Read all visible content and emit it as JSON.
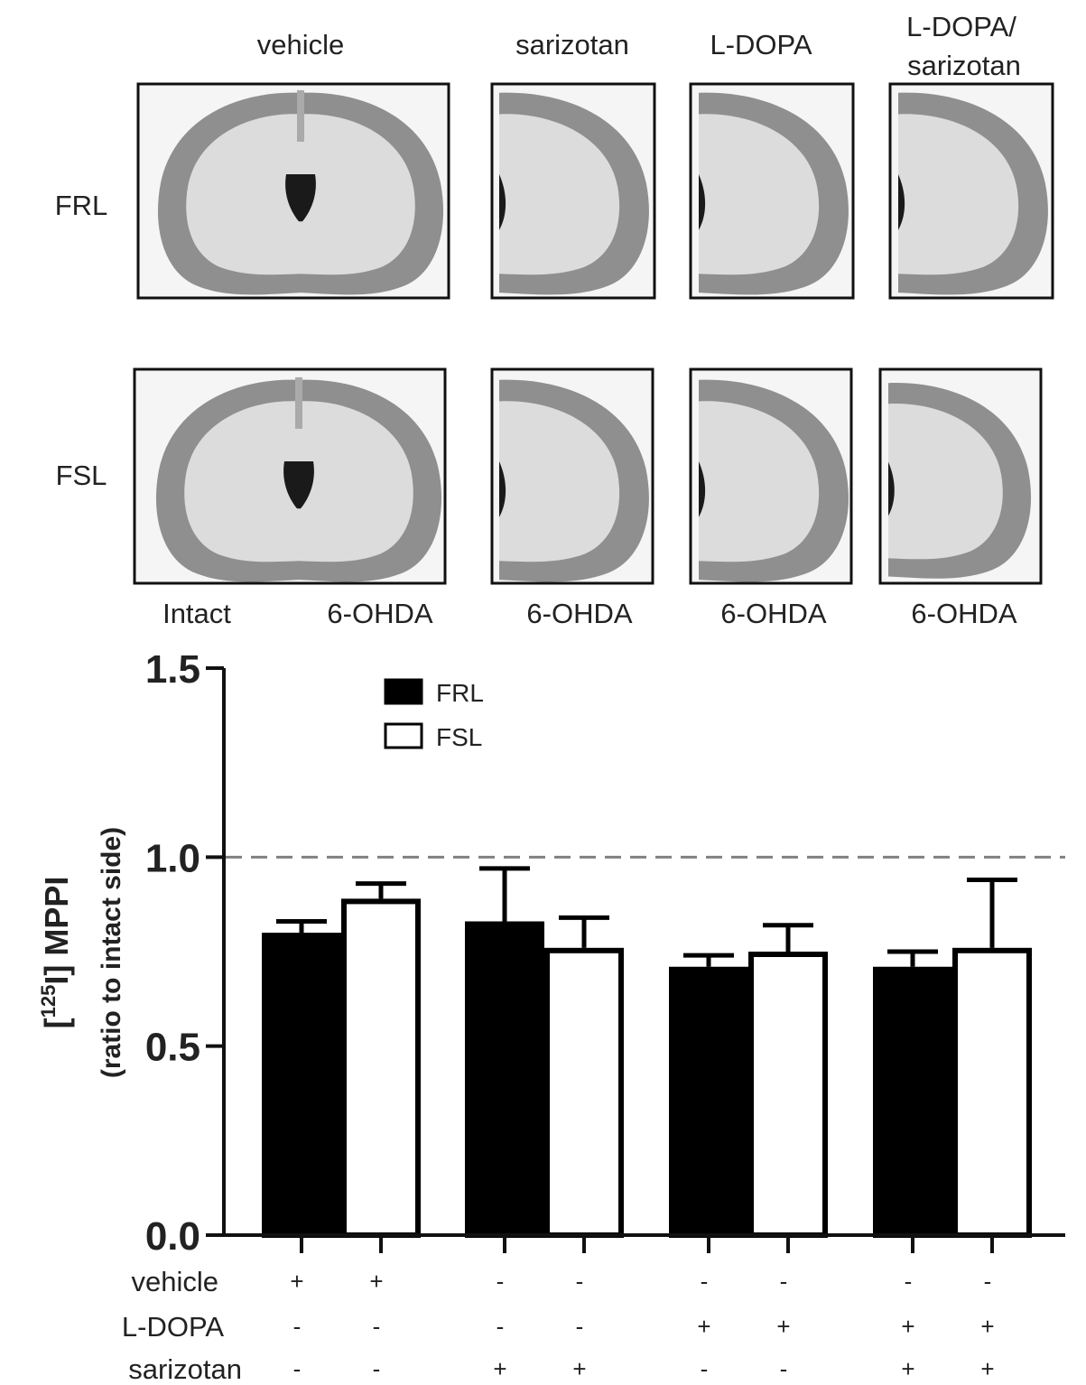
{
  "panel_images": {
    "column_labels": [
      "vehicle",
      "sarizotan",
      "L-DOPA",
      "L-DOPA/",
      "sarizotan"
    ],
    "row_labels": [
      "FRL",
      "FSL"
    ],
    "bottom_labels": [
      "Intact",
      "6-OHDA",
      "6-OHDA",
      "6-OHDA",
      "6-OHDA"
    ]
  },
  "chart_data": {
    "type": "bar",
    "ylabel_main": "[125I] MPPI",
    "ylabel_sup": "125",
    "ylabel_pre": "[",
    "ylabel_post": "I] MPPI",
    "ylabel_sub": "(ratio to intact side)",
    "ylim": [
      0,
      1.5
    ],
    "yticks": [
      "0.0",
      "0.5",
      "1.0",
      "1.5"
    ],
    "reference_line": 1.0,
    "legend": [
      {
        "name": "FRL",
        "fill": "#000000"
      },
      {
        "name": "FSL",
        "fill": "#ffffff"
      }
    ],
    "groups": [
      "vehicle",
      "sarizotan",
      "L-DOPA",
      "L-DOPA/sarizotan"
    ],
    "series": [
      {
        "name": "FRL",
        "values": [
          0.8,
          0.83,
          0.71,
          0.71
        ],
        "errors": [
          0.03,
          0.14,
          0.03,
          0.04
        ]
      },
      {
        "name": "FSL",
        "values": [
          0.89,
          0.76,
          0.75,
          0.76
        ],
        "errors": [
          0.04,
          0.08,
          0.07,
          0.18
        ]
      }
    ],
    "treatment_table": {
      "rows": [
        "vehicle",
        "L-DOPA",
        "sarizotan"
      ],
      "values": [
        [
          "+",
          "+",
          "-",
          "-",
          "-",
          "-",
          "-",
          "-"
        ],
        [
          "-",
          "-",
          "-",
          "-",
          "+",
          "+",
          "+",
          "+"
        ],
        [
          "-",
          "-",
          "+",
          "+",
          "-",
          "-",
          "+",
          "+"
        ]
      ]
    }
  }
}
